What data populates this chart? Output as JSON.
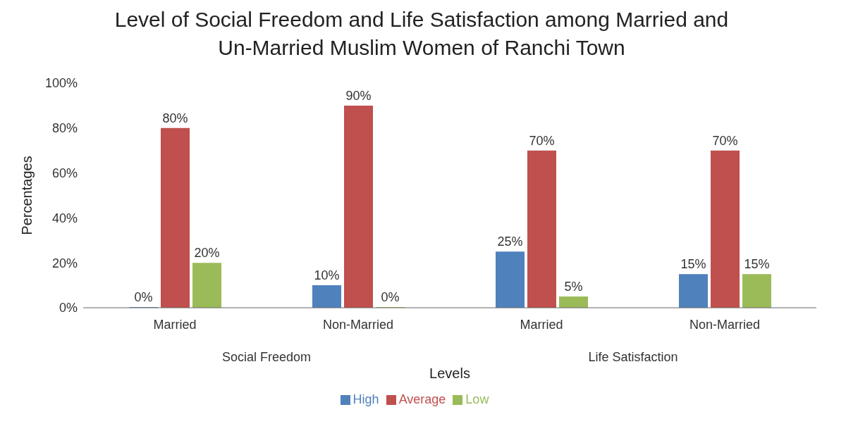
{
  "chart_data": {
    "type": "bar",
    "title": "Level of Social Freedom and Life Satisfaction among Married and Un-Married Muslim Women of Ranchi Town",
    "xlabel": "Levels",
    "ylabel": "Percentages",
    "categories": [
      "Married",
      "Non-Married",
      "Married",
      "Non-Married"
    ],
    "annotations": [
      "Social Freedom",
      "Life Satisfaction"
    ],
    "series": [
      {
        "name": "High",
        "color": "#4f81bd",
        "values": [
          0,
          10,
          25,
          15
        ],
        "value_labels": [
          "0%",
          "10%",
          "25%",
          "15%"
        ]
      },
      {
        "name": "Average",
        "color": "#c0504d",
        "values": [
          80,
          90,
          70,
          70
        ],
        "value_labels": [
          "80%",
          "90%",
          "70%",
          "70%"
        ]
      },
      {
        "name": "Low",
        "color": "#9bbb59",
        "values": [
          20,
          0,
          5,
          15
        ],
        "value_labels": [
          "20%",
          "0%",
          "5%",
          "15%"
        ]
      }
    ],
    "ylim": [
      0,
      100
    ],
    "yticks": [
      {
        "value": 0,
        "label": "0%"
      },
      {
        "value": 20,
        "label": "20%"
      },
      {
        "value": 40,
        "label": "40%"
      },
      {
        "value": 60,
        "label": "60%"
      },
      {
        "value": 80,
        "label": "80%"
      },
      {
        "value": 100,
        "label": "100%"
      }
    ],
    "legend": "bottom"
  }
}
